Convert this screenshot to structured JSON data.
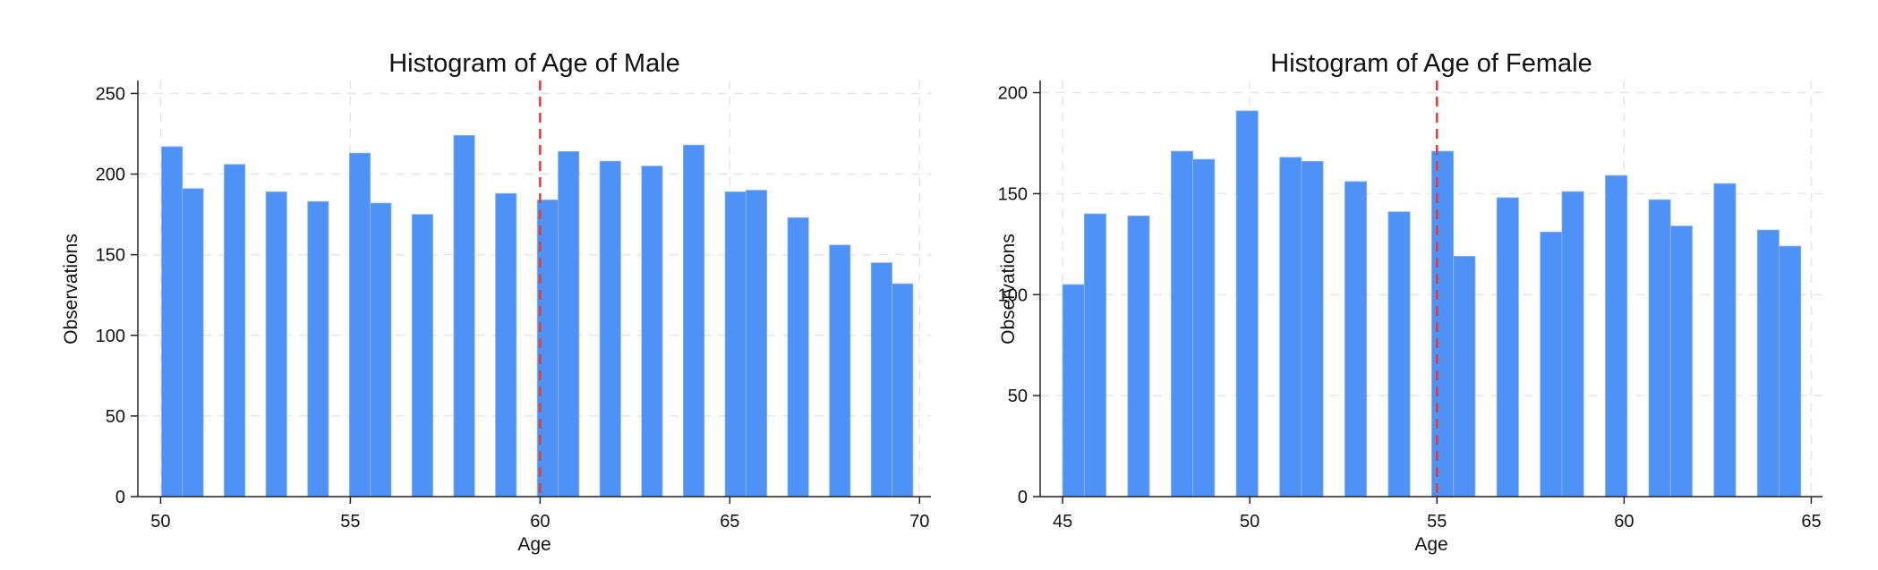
{
  "bar_color": "#4f92f7",
  "ref_line_color": "#e03c3c",
  "chart_data": [
    {
      "type": "bar",
      "title": "Histogram of Age of Male",
      "xlabel": "Age",
      "ylabel": "Observations",
      "xlim": [
        49.4,
        70.3
      ],
      "ylim": [
        0,
        258
      ],
      "xticks": [
        50,
        55,
        60,
        65,
        70
      ],
      "yticks": [
        0,
        50,
        100,
        150,
        200,
        250
      ],
      "grid": true,
      "reference_line_x": 60,
      "bin_width": 0.55,
      "bins": [
        {
          "x": 50.3,
          "y": 217
        },
        {
          "x": 50.85,
          "y": 191
        },
        {
          "x": 51.95,
          "y": 206
        },
        {
          "x": 53.05,
          "y": 189
        },
        {
          "x": 54.15,
          "y": 183
        },
        {
          "x": 55.25,
          "y": 213
        },
        {
          "x": 55.8,
          "y": 182
        },
        {
          "x": 56.9,
          "y": 175
        },
        {
          "x": 58.0,
          "y": 224
        },
        {
          "x": 59.1,
          "y": 188
        },
        {
          "x": 60.2,
          "y": 184
        },
        {
          "x": 60.75,
          "y": 214
        },
        {
          "x": 61.85,
          "y": 208
        },
        {
          "x": 62.95,
          "y": 205
        },
        {
          "x": 64.05,
          "y": 218
        },
        {
          "x": 65.15,
          "y": 189
        },
        {
          "x": 65.7,
          "y": 190
        },
        {
          "x": 66.8,
          "y": 173
        },
        {
          "x": 67.9,
          "y": 156
        },
        {
          "x": 69.0,
          "y": 145
        },
        {
          "x": 69.55,
          "y": 132
        }
      ]
    },
    {
      "type": "bar",
      "title": "Histogram of Age of Female",
      "xlabel": "Age",
      "ylabel": "Observations",
      "xlim": [
        44.4,
        65.3
      ],
      "ylim": [
        0,
        206
      ],
      "xticks": [
        45,
        50,
        55,
        60,
        65
      ],
      "yticks": [
        0,
        50,
        100,
        150,
        200
      ],
      "grid": true,
      "reference_line_x": 55,
      "bin_width": 0.58,
      "bins": [
        {
          "x": 45.29,
          "y": 105
        },
        {
          "x": 45.87,
          "y": 140
        },
        {
          "x": 47.03,
          "y": 139
        },
        {
          "x": 48.19,
          "y": 171
        },
        {
          "x": 48.77,
          "y": 167
        },
        {
          "x": 49.93,
          "y": 191
        },
        {
          "x": 51.09,
          "y": 168
        },
        {
          "x": 51.67,
          "y": 166
        },
        {
          "x": 52.83,
          "y": 156
        },
        {
          "x": 53.99,
          "y": 141
        },
        {
          "x": 55.15,
          "y": 171
        },
        {
          "x": 55.73,
          "y": 119
        },
        {
          "x": 56.89,
          "y": 148
        },
        {
          "x": 58.05,
          "y": 131
        },
        {
          "x": 58.63,
          "y": 151
        },
        {
          "x": 59.79,
          "y": 159
        },
        {
          "x": 60.95,
          "y": 147
        },
        {
          "x": 61.53,
          "y": 134
        },
        {
          "x": 62.69,
          "y": 155
        },
        {
          "x": 63.85,
          "y": 132
        },
        {
          "x": 64.43,
          "y": 124
        }
      ]
    }
  ]
}
